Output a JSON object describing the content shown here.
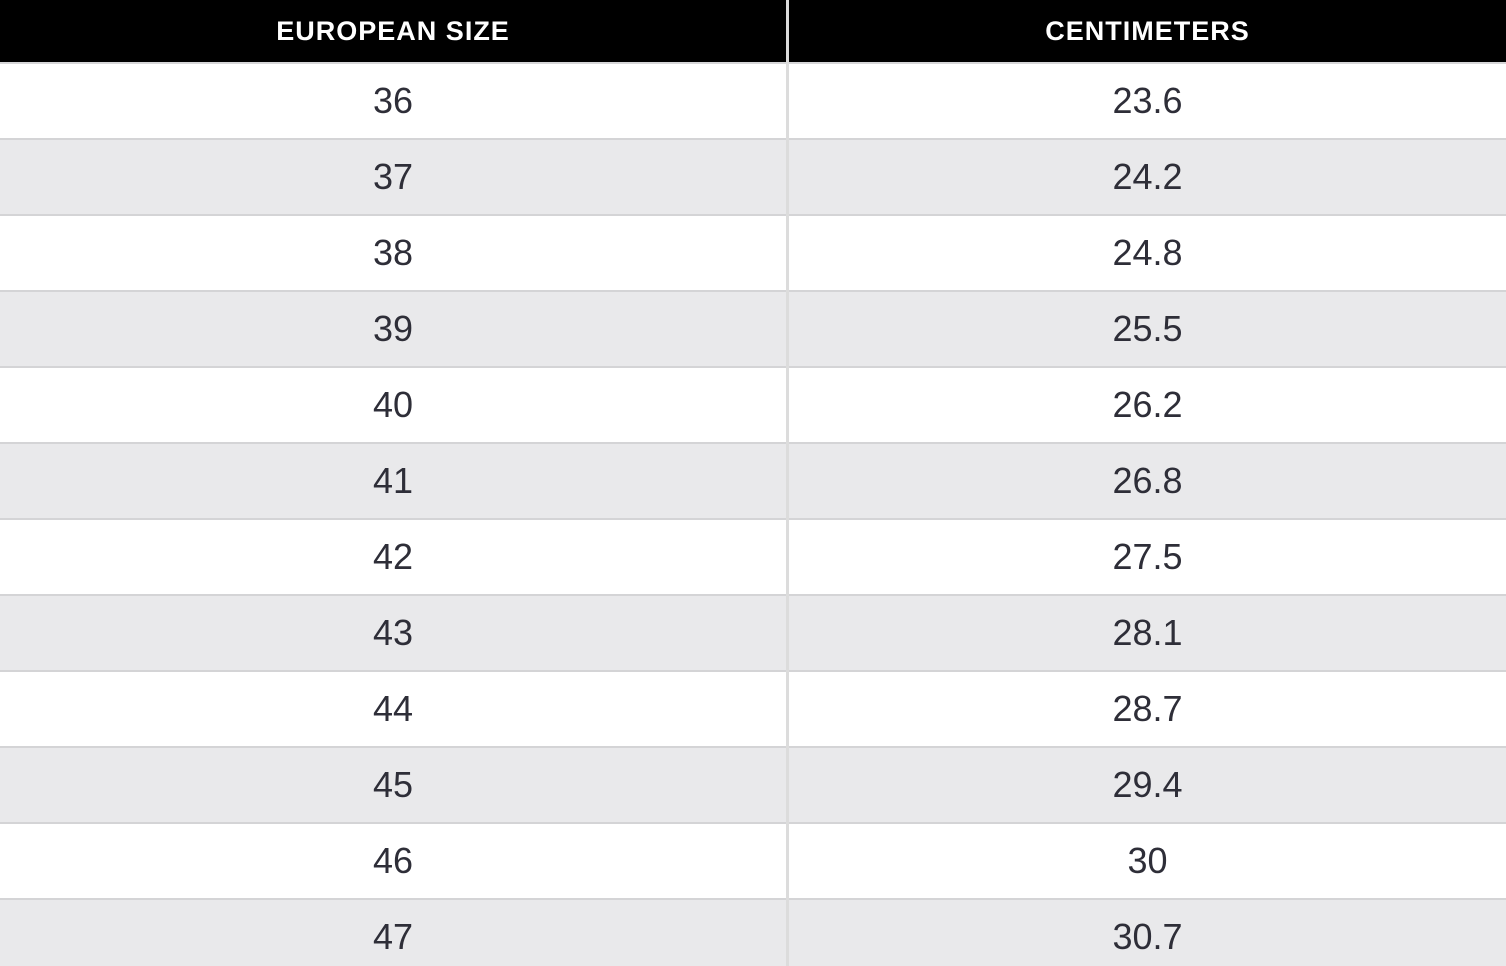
{
  "chart_data": {
    "type": "table",
    "columns": [
      "EUROPEAN SIZE",
      "CENTIMETERS"
    ],
    "rows": [
      [
        "36",
        "23.6"
      ],
      [
        "37",
        "24.2"
      ],
      [
        "38",
        "24.8"
      ],
      [
        "39",
        "25.5"
      ],
      [
        "40",
        "26.2"
      ],
      [
        "41",
        "26.8"
      ],
      [
        "42",
        "27.5"
      ],
      [
        "43",
        "28.1"
      ],
      [
        "44",
        "28.7"
      ],
      [
        "45",
        "29.4"
      ],
      [
        "46",
        "30"
      ],
      [
        "47",
        "30.7"
      ]
    ]
  },
  "colors": {
    "header_background": "#000000",
    "header_text": "#ffffff",
    "row_stripe": "#e9e9eb",
    "row_plain": "#ffffff",
    "row_border": "#d4d4d6",
    "column_divider": "#dcdcdc",
    "cell_text": "#2e2e38"
  }
}
